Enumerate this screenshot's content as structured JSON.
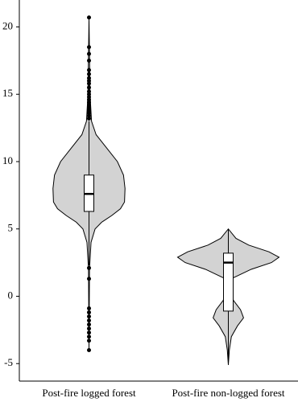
{
  "chart_data": {
    "type": "violin",
    "categories": [
      "Post-fire logged forest",
      "Post-fire non-logged forest"
    ],
    "color": "#d3d3d3",
    "ylim": [
      -6.3,
      22
    ],
    "yticks": [
      -5,
      0,
      5,
      10,
      15,
      20
    ],
    "groups": [
      {
        "violin_y": [
          -4,
          2,
          4,
          5,
          5.5,
          6,
          6.5,
          7,
          8,
          9,
          10,
          11,
          12,
          13,
          15,
          20.7
        ],
        "violin_density": [
          0,
          0.01,
          0.04,
          0.12,
          0.25,
          0.45,
          0.62,
          0.7,
          0.71,
          0.68,
          0.56,
          0.35,
          0.14,
          0.05,
          0.02,
          0
        ],
        "q1": 6.3,
        "median": 7.6,
        "q3": 9.0,
        "whisker_low": 2.3,
        "whisker_high": 13.0,
        "outliers": [
          13.2,
          13.4,
          13.6,
          13.8,
          14,
          14.2,
          14.4,
          14.6,
          14.8,
          15,
          15.2,
          15.5,
          15.8,
          16,
          16.2,
          16.5,
          16.8,
          17.5,
          18,
          18.5,
          20.7,
          2.1,
          1.3,
          -0.9,
          -1.2,
          -1.5,
          -1.8,
          -2.1,
          -2.4,
          -2.7,
          -3,
          -3.3,
          -4
        ]
      },
      {
        "violin_y": [
          -5.1,
          -4,
          -3,
          -2.2,
          -1.6,
          -1,
          -0.3,
          0.5,
          1.3,
          2,
          2.5,
          2.9,
          3.3,
          3.8,
          4.3,
          5.0
        ],
        "violin_density": [
          0,
          0.02,
          0.06,
          0.18,
          0.3,
          0.24,
          0.1,
          0.04,
          0.06,
          0.45,
          0.85,
          1.0,
          0.8,
          0.4,
          0.15,
          0
        ],
        "q1": -1.1,
        "median": 2.5,
        "q3": 3.2,
        "whisker_low": -5.1,
        "whisker_high": 5.0,
        "outliers": []
      }
    ]
  }
}
